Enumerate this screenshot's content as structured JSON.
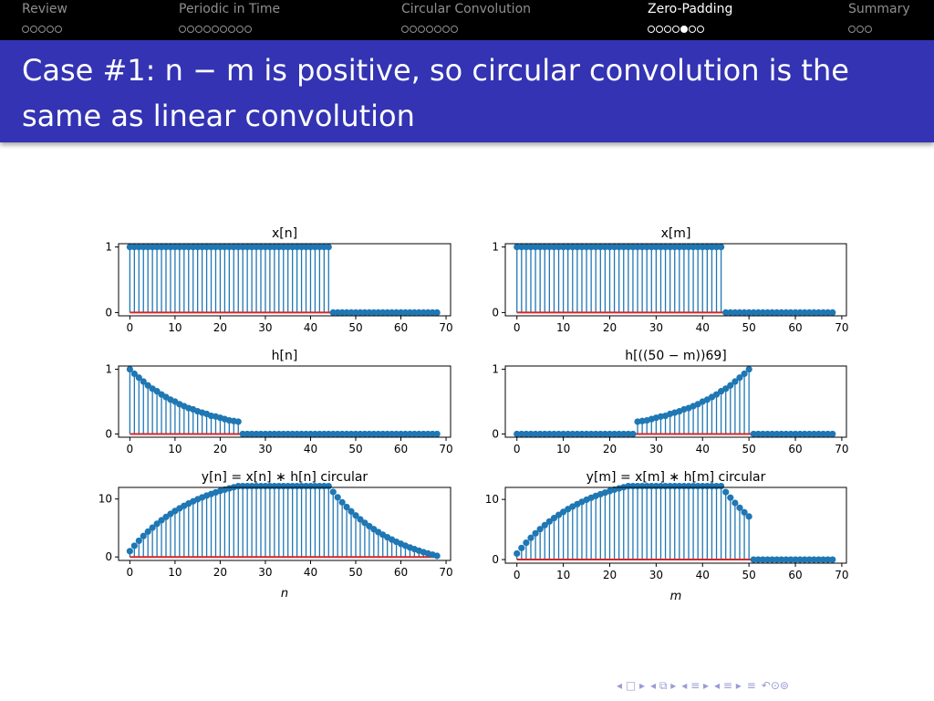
{
  "navbar": {
    "sections": [
      {
        "label": "Review",
        "dots": 5,
        "filled_index": -1
      },
      {
        "label": "Periodic in Time",
        "dots": 9,
        "filled_index": -1
      },
      {
        "label": "Circular Convolution",
        "dots": 7,
        "filled_index": -1
      },
      {
        "label": "Zero-Padding",
        "dots": 7,
        "filled_index": 4
      },
      {
        "label": "Summary",
        "dots": 3,
        "filled_index": -1
      }
    ],
    "current_section": 3
  },
  "frame": {
    "title": "Case #1:  n − m is positive, so circular convolution is the same as linear convolution"
  },
  "colors": {
    "stem": "#1f77b4",
    "baseline": "#d62728",
    "navbar_bg": "#000000",
    "titlebar_bg": "#3333b3",
    "footer_icons": "#9b9bd6"
  },
  "footer_icons": [
    "nav-prev-icon",
    "nav-frame-icon",
    "nav-next-icon",
    "nav-subsection-icon",
    "nav-section-prev-icon",
    "nav-section-icon",
    "nav-section-next-icon",
    "nav-search-icon",
    "nav-zoom-icon",
    "nav-undo-icon"
  ],
  "chart_data": [
    {
      "type": "stem",
      "title": "x[n]",
      "xlabel": "",
      "ylabel": "",
      "xlim": [
        -2.5,
        71
      ],
      "ylim": [
        -0.05,
        1.05
      ],
      "xticks": [
        0,
        10,
        20,
        30,
        40,
        50,
        60,
        70
      ],
      "yticks": [
        0,
        1
      ],
      "tick_labels_x": [
        "0",
        "10",
        "20",
        "30",
        "40",
        "50",
        "60",
        "70"
      ],
      "tick_labels_y": [
        "0",
        "1"
      ],
      "x": [
        0,
        1,
        2,
        3,
        4,
        5,
        6,
        7,
        8,
        9,
        10,
        11,
        12,
        13,
        14,
        15,
        16,
        17,
        18,
        19,
        20,
        21,
        22,
        23,
        24,
        25,
        26,
        27,
        28,
        29,
        30,
        31,
        32,
        33,
        34,
        35,
        36,
        37,
        38,
        39,
        40,
        41,
        42,
        43,
        44,
        45,
        46,
        47,
        48,
        49,
        50,
        51,
        52,
        53,
        54,
        55,
        56,
        57,
        58,
        59,
        60,
        61,
        62,
        63,
        64,
        65,
        66,
        67,
        68
      ],
      "y": [
        1,
        1,
        1,
        1,
        1,
        1,
        1,
        1,
        1,
        1,
        1,
        1,
        1,
        1,
        1,
        1,
        1,
        1,
        1,
        1,
        1,
        1,
        1,
        1,
        1,
        1,
        1,
        1,
        1,
        1,
        1,
        1,
        1,
        1,
        1,
        1,
        1,
        1,
        1,
        1,
        1,
        1,
        1,
        1,
        1,
        0,
        0,
        0,
        0,
        0,
        0,
        0,
        0,
        0,
        0,
        0,
        0,
        0,
        0,
        0,
        0,
        0,
        0,
        0,
        0,
        0,
        0,
        0,
        0
      ]
    },
    {
      "type": "stem",
      "title": "x[m]",
      "xlabel": "",
      "ylabel": "",
      "xlim": [
        -2.5,
        71
      ],
      "ylim": [
        -0.05,
        1.05
      ],
      "xticks": [
        0,
        10,
        20,
        30,
        40,
        50,
        60,
        70
      ],
      "yticks": [
        0,
        1
      ],
      "tick_labels_x": [
        "0",
        "10",
        "20",
        "30",
        "40",
        "50",
        "60",
        "70"
      ],
      "tick_labels_y": [
        "0",
        "1"
      ],
      "x": [
        0,
        1,
        2,
        3,
        4,
        5,
        6,
        7,
        8,
        9,
        10,
        11,
        12,
        13,
        14,
        15,
        16,
        17,
        18,
        19,
        20,
        21,
        22,
        23,
        24,
        25,
        26,
        27,
        28,
        29,
        30,
        31,
        32,
        33,
        34,
        35,
        36,
        37,
        38,
        39,
        40,
        41,
        42,
        43,
        44,
        45,
        46,
        47,
        48,
        49,
        50,
        51,
        52,
        53,
        54,
        55,
        56,
        57,
        58,
        59,
        60,
        61,
        62,
        63,
        64,
        65,
        66,
        67,
        68
      ],
      "y": [
        1,
        1,
        1,
        1,
        1,
        1,
        1,
        1,
        1,
        1,
        1,
        1,
        1,
        1,
        1,
        1,
        1,
        1,
        1,
        1,
        1,
        1,
        1,
        1,
        1,
        1,
        1,
        1,
        1,
        1,
        1,
        1,
        1,
        1,
        1,
        1,
        1,
        1,
        1,
        1,
        1,
        1,
        1,
        1,
        1,
        0,
        0,
        0,
        0,
        0,
        0,
        0,
        0,
        0,
        0,
        0,
        0,
        0,
        0,
        0,
        0,
        0,
        0,
        0,
        0,
        0,
        0,
        0,
        0
      ]
    },
    {
      "type": "stem",
      "title": "h[n]",
      "xlabel": "",
      "ylabel": "",
      "xlim": [
        -2.5,
        71
      ],
      "ylim": [
        -0.05,
        1.05
      ],
      "xticks": [
        0,
        10,
        20,
        30,
        40,
        50,
        60,
        70
      ],
      "yticks": [
        0,
        1
      ],
      "tick_labels_x": [
        "0",
        "10",
        "20",
        "30",
        "40",
        "50",
        "60",
        "70"
      ],
      "tick_labels_y": [
        "0",
        "1"
      ],
      "x": [
        0,
        1,
        2,
        3,
        4,
        5,
        6,
        7,
        8,
        9,
        10,
        11,
        12,
        13,
        14,
        15,
        16,
        17,
        18,
        19,
        20,
        21,
        22,
        23,
        24,
        25,
        26,
        27,
        28,
        29,
        30,
        31,
        32,
        33,
        34,
        35,
        36,
        37,
        38,
        39,
        40,
        41,
        42,
        43,
        44,
        45,
        46,
        47,
        48,
        49,
        50,
        51,
        52,
        53,
        54,
        55,
        56,
        57,
        58,
        59,
        60,
        61,
        62,
        63,
        64,
        65,
        66,
        67,
        68
      ],
      "y": [
        1.0,
        0.93,
        0.87,
        0.81,
        0.75,
        0.7,
        0.66,
        0.61,
        0.57,
        0.53,
        0.5,
        0.46,
        0.43,
        0.4,
        0.38,
        0.35,
        0.33,
        0.31,
        0.28,
        0.27,
        0.25,
        0.23,
        0.21,
        0.2,
        0.19,
        0,
        0,
        0,
        0,
        0,
        0,
        0,
        0,
        0,
        0,
        0,
        0,
        0,
        0,
        0,
        0,
        0,
        0,
        0,
        0,
        0,
        0,
        0,
        0,
        0,
        0,
        0,
        0,
        0,
        0,
        0,
        0,
        0,
        0,
        0,
        0,
        0,
        0,
        0,
        0,
        0,
        0,
        0,
        0
      ]
    },
    {
      "type": "stem",
      "title": "h[((50 − m))69]",
      "xlabel": "",
      "ylabel": "",
      "xlim": [
        -2.5,
        71
      ],
      "ylim": [
        -0.05,
        1.05
      ],
      "xticks": [
        0,
        10,
        20,
        30,
        40,
        50,
        60,
        70
      ],
      "yticks": [
        0,
        1
      ],
      "tick_labels_x": [
        "0",
        "10",
        "20",
        "30",
        "40",
        "50",
        "60",
        "70"
      ],
      "tick_labels_y": [
        "0",
        "1"
      ],
      "x": [
        0,
        1,
        2,
        3,
        4,
        5,
        6,
        7,
        8,
        9,
        10,
        11,
        12,
        13,
        14,
        15,
        16,
        17,
        18,
        19,
        20,
        21,
        22,
        23,
        24,
        25,
        26,
        27,
        28,
        29,
        30,
        31,
        32,
        33,
        34,
        35,
        36,
        37,
        38,
        39,
        40,
        41,
        42,
        43,
        44,
        45,
        46,
        47,
        48,
        49,
        50,
        51,
        52,
        53,
        54,
        55,
        56,
        57,
        58,
        59,
        60,
        61,
        62,
        63,
        64,
        65,
        66,
        67,
        68
      ],
      "y": [
        0,
        0,
        0,
        0,
        0,
        0,
        0,
        0,
        0,
        0,
        0,
        0,
        0,
        0,
        0,
        0,
        0,
        0,
        0,
        0,
        0,
        0,
        0,
        0,
        0,
        0,
        0.19,
        0.2,
        0.21,
        0.23,
        0.25,
        0.27,
        0.28,
        0.31,
        0.33,
        0.35,
        0.38,
        0.4,
        0.43,
        0.46,
        0.5,
        0.53,
        0.57,
        0.61,
        0.66,
        0.7,
        0.75,
        0.81,
        0.87,
        0.93,
        1.0,
        0,
        0,
        0,
        0,
        0,
        0,
        0,
        0,
        0,
        0,
        0,
        0,
        0,
        0,
        0,
        0,
        0,
        0
      ]
    },
    {
      "type": "stem",
      "title": "y[n] = x[n] ∗ h[n] circular",
      "xlabel": "n",
      "ylabel": "",
      "xlim": [
        -2.5,
        71
      ],
      "ylim": [
        -0.6,
        12
      ],
      "xticks": [
        0,
        10,
        20,
        30,
        40,
        50,
        60,
        70
      ],
      "yticks": [
        0,
        10
      ],
      "tick_labels_x": [
        "0",
        "10",
        "20",
        "30",
        "40",
        "50",
        "60",
        "70"
      ],
      "tick_labels_y": [
        "0",
        "10"
      ],
      "x": [
        0,
        1,
        2,
        3,
        4,
        5,
        6,
        7,
        8,
        9,
        10,
        11,
        12,
        13,
        14,
        15,
        16,
        17,
        18,
        19,
        20,
        21,
        22,
        23,
        24,
        25,
        26,
        27,
        28,
        29,
        30,
        31,
        32,
        33,
        34,
        35,
        36,
        37,
        38,
        39,
        40,
        41,
        42,
        43,
        44,
        45,
        46,
        47,
        48,
        49,
        50,
        51,
        52,
        53,
        54,
        55,
        56,
        57,
        58,
        59,
        60,
        61,
        62,
        63,
        64,
        65,
        66,
        67,
        68
      ],
      "y": [
        1.0,
        1.93,
        2.8,
        3.61,
        4.36,
        5.06,
        5.72,
        6.33,
        6.9,
        7.43,
        7.93,
        8.39,
        8.82,
        9.22,
        9.6,
        9.95,
        10.28,
        10.59,
        10.87,
        11.14,
        11.39,
        11.62,
        11.83,
        12.03,
        12.22,
        12.22,
        12.22,
        12.22,
        12.22,
        12.22,
        12.22,
        12.22,
        12.22,
        12.22,
        12.22,
        12.22,
        12.22,
        12.22,
        12.22,
        12.22,
        12.22,
        12.22,
        12.22,
        12.22,
        12.22,
        11.22,
        10.29,
        9.42,
        8.61,
        7.86,
        7.16,
        6.5,
        5.89,
        5.32,
        4.79,
        4.29,
        3.83,
        3.4,
        3.0,
        2.62,
        2.27,
        1.94,
        1.63,
        1.35,
        1.08,
        0.83,
        0.6,
        0.39,
        0.19
      ]
    },
    {
      "type": "stem",
      "title": "y[m] = x[m] ∗ h[m] circular",
      "xlabel": "m",
      "ylabel": "",
      "xlim": [
        -2.5,
        71
      ],
      "ylim": [
        -0.6,
        12
      ],
      "xticks": [
        0,
        10,
        20,
        30,
        40,
        50,
        60,
        70
      ],
      "yticks": [
        0,
        10
      ],
      "tick_labels_x": [
        "0",
        "10",
        "20",
        "30",
        "40",
        "50",
        "60",
        "70"
      ],
      "tick_labels_y": [
        "0",
        "10"
      ],
      "x": [
        0,
        1,
        2,
        3,
        4,
        5,
        6,
        7,
        8,
        9,
        10,
        11,
        12,
        13,
        14,
        15,
        16,
        17,
        18,
        19,
        20,
        21,
        22,
        23,
        24,
        25,
        26,
        27,
        28,
        29,
        30,
        31,
        32,
        33,
        34,
        35,
        36,
        37,
        38,
        39,
        40,
        41,
        42,
        43,
        44,
        45,
        46,
        47,
        48,
        49,
        50,
        51,
        52,
        53,
        54,
        55,
        56,
        57,
        58,
        59,
        60,
        61,
        62,
        63,
        64,
        65,
        66,
        67,
        68
      ],
      "y": [
        1.0,
        1.93,
        2.8,
        3.61,
        4.36,
        5.06,
        5.72,
        6.33,
        6.9,
        7.43,
        7.93,
        8.39,
        8.82,
        9.22,
        9.6,
        9.95,
        10.28,
        10.59,
        10.87,
        11.14,
        11.39,
        11.62,
        11.83,
        12.03,
        12.22,
        12.22,
        12.22,
        12.22,
        12.22,
        12.22,
        12.22,
        12.22,
        12.22,
        12.22,
        12.22,
        12.22,
        12.22,
        12.22,
        12.22,
        12.22,
        12.22,
        12.22,
        12.22,
        12.22,
        12.22,
        11.22,
        10.29,
        9.42,
        8.61,
        7.86,
        7.16,
        0,
        0,
        0,
        0,
        0,
        0,
        0,
        0,
        0,
        0,
        0,
        0,
        0,
        0,
        0,
        0,
        0,
        0
      ]
    }
  ]
}
